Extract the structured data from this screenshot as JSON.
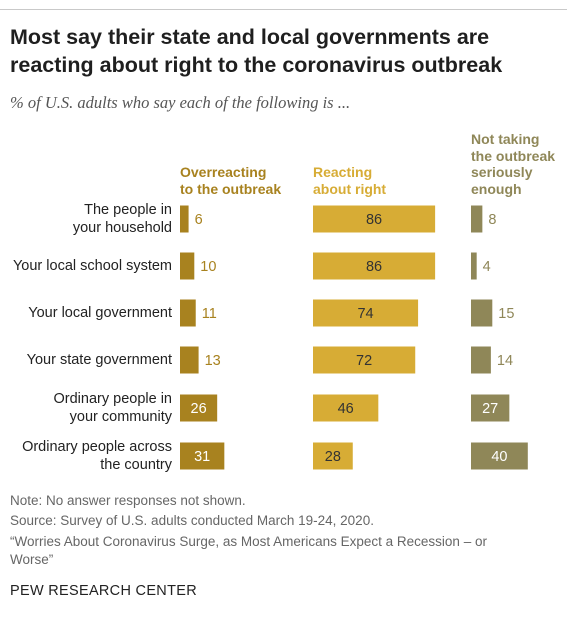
{
  "title": "Most say their state and local governments are reacting about right to the coronavirus outbreak",
  "subtitle": "% of U.S. adults who say each of the following is ...",
  "colors": {
    "overreacting": "#a8821f",
    "about_right": "#d7ac35",
    "not_serious": "#8f8758",
    "label_light": "#333333"
  },
  "chart_data": {
    "type": "bar",
    "orientation": "horizontal",
    "categories": [
      [
        "The people in",
        "your household"
      ],
      [
        "Your local school system"
      ],
      [
        "Your local government"
      ],
      [
        "Your state government"
      ],
      [
        "Ordinary people in",
        "your community"
      ],
      [
        "Ordinary people across",
        "the country"
      ]
    ],
    "series": [
      {
        "name": [
          "Overreacting",
          "to the outbreak"
        ],
        "values": [
          6,
          10,
          11,
          13,
          26,
          31
        ]
      },
      {
        "name": [
          "Reacting",
          "about right"
        ],
        "values": [
          86,
          86,
          74,
          72,
          46,
          28
        ]
      },
      {
        "name": [
          "Not taking",
          "the outbreak",
          "seriously",
          "enough"
        ],
        "values": [
          8,
          4,
          15,
          14,
          27,
          40
        ]
      }
    ],
    "xlabel": "",
    "ylabel": ""
  },
  "notes": {
    "line1": "Note: No answer responses not shown.",
    "line2": "Source: Survey of U.S. adults conducted March 19-24, 2020.",
    "line3": "“Worries About Coronavirus Surge, as Most Americans Expect a Recession – or",
    "line4": "Worse”"
  },
  "brand": "PEW RESEARCH CENTER"
}
